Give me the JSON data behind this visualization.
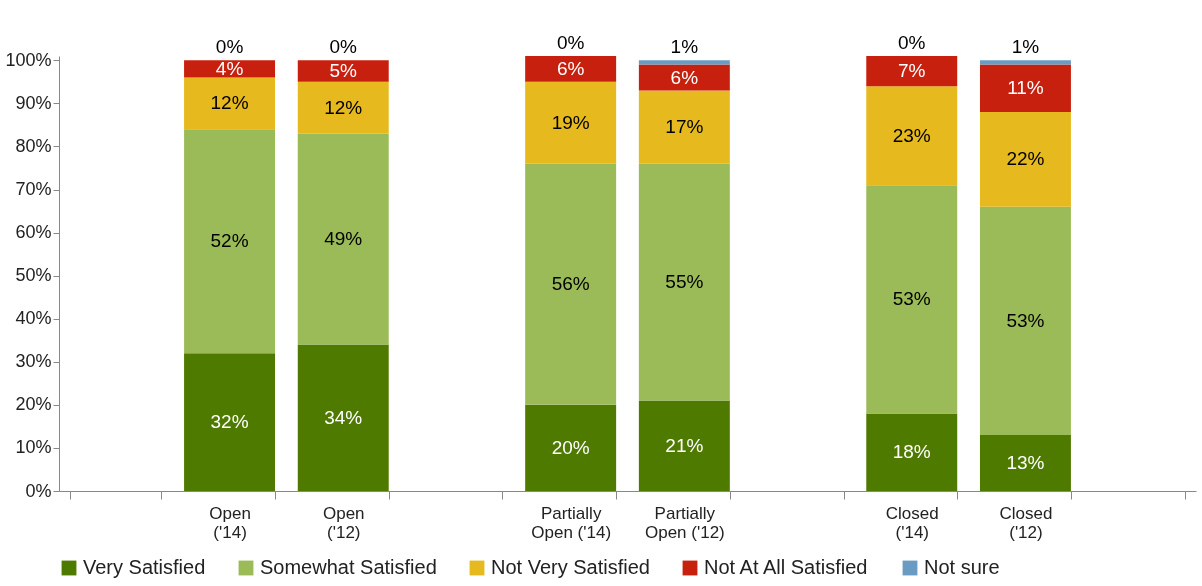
{
  "chart_data": {
    "type": "bar",
    "stacked": true,
    "categories": [
      null,
      "Open ('14)",
      "Open ('12)",
      null,
      "Partially Open ('14)",
      "Partially Open ('12)",
      null,
      "Closed ('14)",
      "Closed ('12)",
      null
    ],
    "series": [
      {
        "name": "Very Satisfied",
        "color": "#4f7a00",
        "values": [
          null,
          32,
          34,
          null,
          20,
          21,
          null,
          18,
          13,
          null
        ],
        "value_labels": [
          null,
          "32%",
          "34%",
          null,
          "20%",
          "21%",
          null,
          "18%",
          "13%",
          null
        ]
      },
      {
        "name": "Somewhat Satisfied",
        "color": "#9bbb59",
        "values": [
          null,
          52,
          49,
          null,
          56,
          55,
          null,
          53,
          53,
          null
        ],
        "value_labels": [
          null,
          "52%",
          "49%",
          null,
          "56%",
          "55%",
          null,
          "53%",
          "53%",
          null
        ]
      },
      {
        "name": "Not Very Satisfied",
        "color": "#e6b91e",
        "values": [
          null,
          12,
          12,
          null,
          19,
          17,
          null,
          23,
          22,
          null
        ],
        "value_labels": [
          null,
          "12%",
          "12%",
          null,
          "19%",
          "17%",
          null,
          "23%",
          "22%",
          null
        ]
      },
      {
        "name": "Not At All Satisfied",
        "color": "#c8200e",
        "values": [
          null,
          4,
          5,
          null,
          6,
          6,
          null,
          7,
          11,
          null
        ],
        "value_labels": [
          null,
          "4%",
          "5%",
          null,
          "6%",
          "6%",
          null,
          "7%",
          "11%",
          null
        ]
      },
      {
        "name": "Not sure",
        "color": "#6a9bc3",
        "values": [
          null,
          0,
          0,
          null,
          0,
          1,
          null,
          0,
          1,
          null
        ],
        "value_labels": [
          null,
          "0%",
          "0%",
          null,
          "0%",
          "1%",
          null,
          "0%",
          "1%",
          null
        ]
      }
    ],
    "ylim": [
      0,
      101
    ],
    "yticks": [
      {
        "value": 0,
        "label": "0%"
      },
      {
        "value": 10,
        "label": "10%"
      },
      {
        "value": 20,
        "label": "20%"
      },
      {
        "value": 30,
        "label": "30%"
      },
      {
        "value": 40,
        "label": "40%"
      },
      {
        "value": 50,
        "label": "50%"
      },
      {
        "value": 60,
        "label": "60%"
      },
      {
        "value": 70,
        "label": "70%"
      },
      {
        "value": 80,
        "label": "80%"
      },
      {
        "value": 90,
        "label": "90%"
      },
      {
        "value": 100,
        "label": "100%"
      }
    ],
    "grid": false,
    "legend": "bottom"
  }
}
